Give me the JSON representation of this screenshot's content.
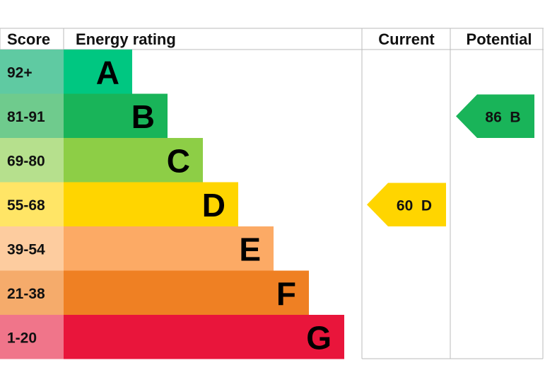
{
  "chart_data": {
    "type": "bar",
    "headers": {
      "score": "Score",
      "rating": "Energy rating",
      "current": "Current",
      "potential": "Potential"
    },
    "bands": [
      {
        "score": "92+",
        "letter": "A",
        "color": "#00c781",
        "score_bg": "#5fcaa2"
      },
      {
        "score": "81-91",
        "letter": "B",
        "color": "#19b459",
        "score_bg": "#6fcb8d"
      },
      {
        "score": "69-80",
        "letter": "C",
        "color": "#8dce46",
        "score_bg": "#b6e08d"
      },
      {
        "score": "55-68",
        "letter": "D",
        "color": "#ffd500",
        "score_bg": "#ffe566"
      },
      {
        "score": "39-54",
        "letter": "E",
        "color": "#fcaa65",
        "score_bg": "#fdcc9f"
      },
      {
        "score": "21-38",
        "letter": "F",
        "color": "#ef8023",
        "score_bg": "#f5ab6b"
      },
      {
        "score": "1-20",
        "letter": "G",
        "color": "#e9153b",
        "score_bg": "#f0758a"
      }
    ],
    "current": {
      "value": 60,
      "letter": "D",
      "label": "60  D",
      "color": "#ffd500"
    },
    "potential": {
      "value": 86,
      "letter": "B",
      "label": "86  B",
      "color": "#19b459"
    }
  }
}
